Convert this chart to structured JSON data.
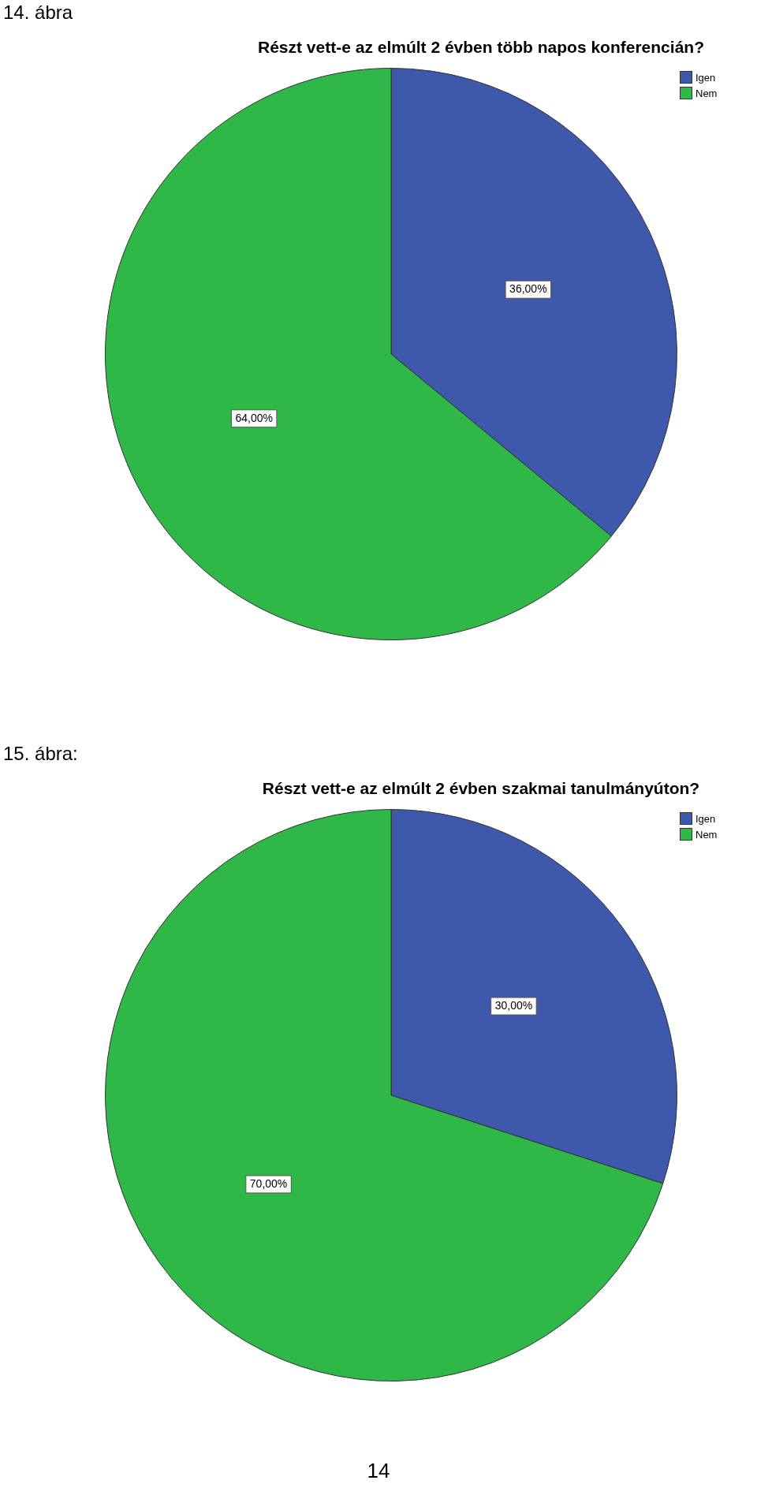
{
  "chart_data": [
    {
      "type": "pie",
      "title": "Részt vett-e az elmúlt 2 évben több napos konferencián?",
      "categories": [
        "Igen",
        "Nem"
      ],
      "values": [
        36,
        64
      ],
      "colors": [
        "#3e58ab",
        "#2fb847"
      ],
      "value_labels": [
        "36,00%",
        "64,00%"
      ],
      "legend": "top right",
      "annotations": [
        "14. ábra"
      ]
    },
    {
      "type": "pie",
      "title": "Részt vett-e az elmúlt 2 évben szakmai tanulmányúton?",
      "categories": [
        "Igen",
        "Nem"
      ],
      "values": [
        30,
        70
      ],
      "colors": [
        "#3e58ab",
        "#2fb847"
      ],
      "value_labels": [
        "30,00%",
        "70,00%"
      ],
      "legend": "top right",
      "annotations": [
        "15. ábra:",
        "14"
      ]
    }
  ]
}
